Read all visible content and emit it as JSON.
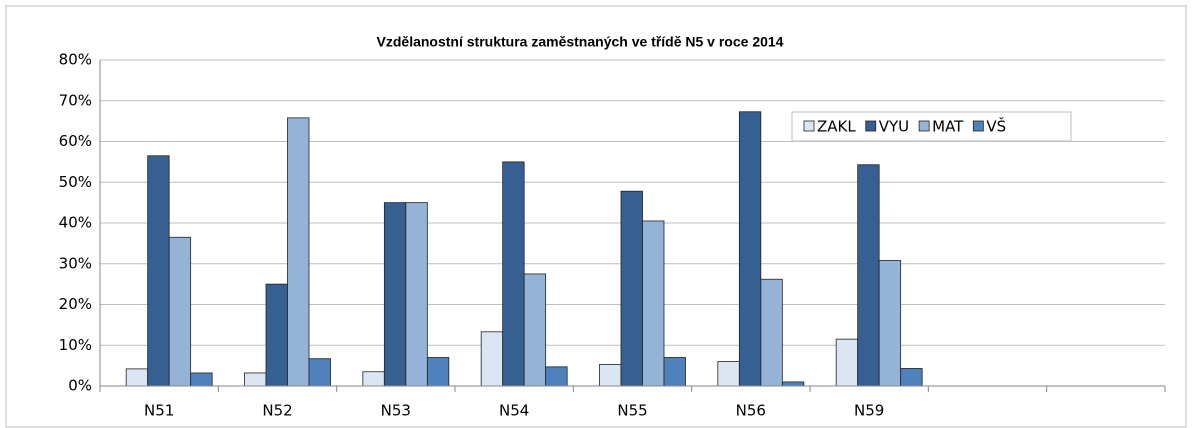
{
  "chart_data": {
    "type": "bar",
    "title": "Vzdělanostní struktura zaměstnaných ve třídě N5 v roce 2014",
    "categories": [
      "N51",
      "N52",
      "N53",
      "N54",
      "N55",
      "N56",
      "N59",
      null,
      null
    ],
    "series": [
      {
        "name": "ZAKL",
        "color": "#dce6f2",
        "values": [
          4.2,
          3.2,
          3.5,
          13.3,
          5.3,
          6,
          11.5,
          null,
          null
        ]
      },
      {
        "name": "VYU",
        "color": "#376092",
        "values": [
          56.5,
          25,
          45,
          55,
          47.8,
          67.3,
          54.3,
          null,
          null
        ]
      },
      {
        "name": "MAT",
        "color": "#95b3d7",
        "values": [
          36.5,
          65.8,
          45,
          27.5,
          40.5,
          26.2,
          30.8,
          null,
          null
        ]
      },
      {
        "name": "VŠ",
        "color": "#4f81bd",
        "values": [
          3.2,
          6.7,
          7,
          4.7,
          7,
          1,
          4.3,
          null,
          null
        ]
      }
    ],
    "ylim": [
      0,
      80
    ],
    "yticks": [
      {
        "value": 0,
        "label": "0%"
      },
      {
        "value": 10,
        "label": "10%"
      },
      {
        "value": 20,
        "label": "20%"
      },
      {
        "value": 30,
        "label": "30%"
      },
      {
        "value": 40,
        "label": "40%"
      },
      {
        "value": 50,
        "label": "50%"
      },
      {
        "value": 60,
        "label": "60%"
      },
      {
        "value": 70,
        "label": "70%"
      },
      {
        "value": 80,
        "label": "80%"
      }
    ],
    "grid": true,
    "legend": "top-right"
  }
}
